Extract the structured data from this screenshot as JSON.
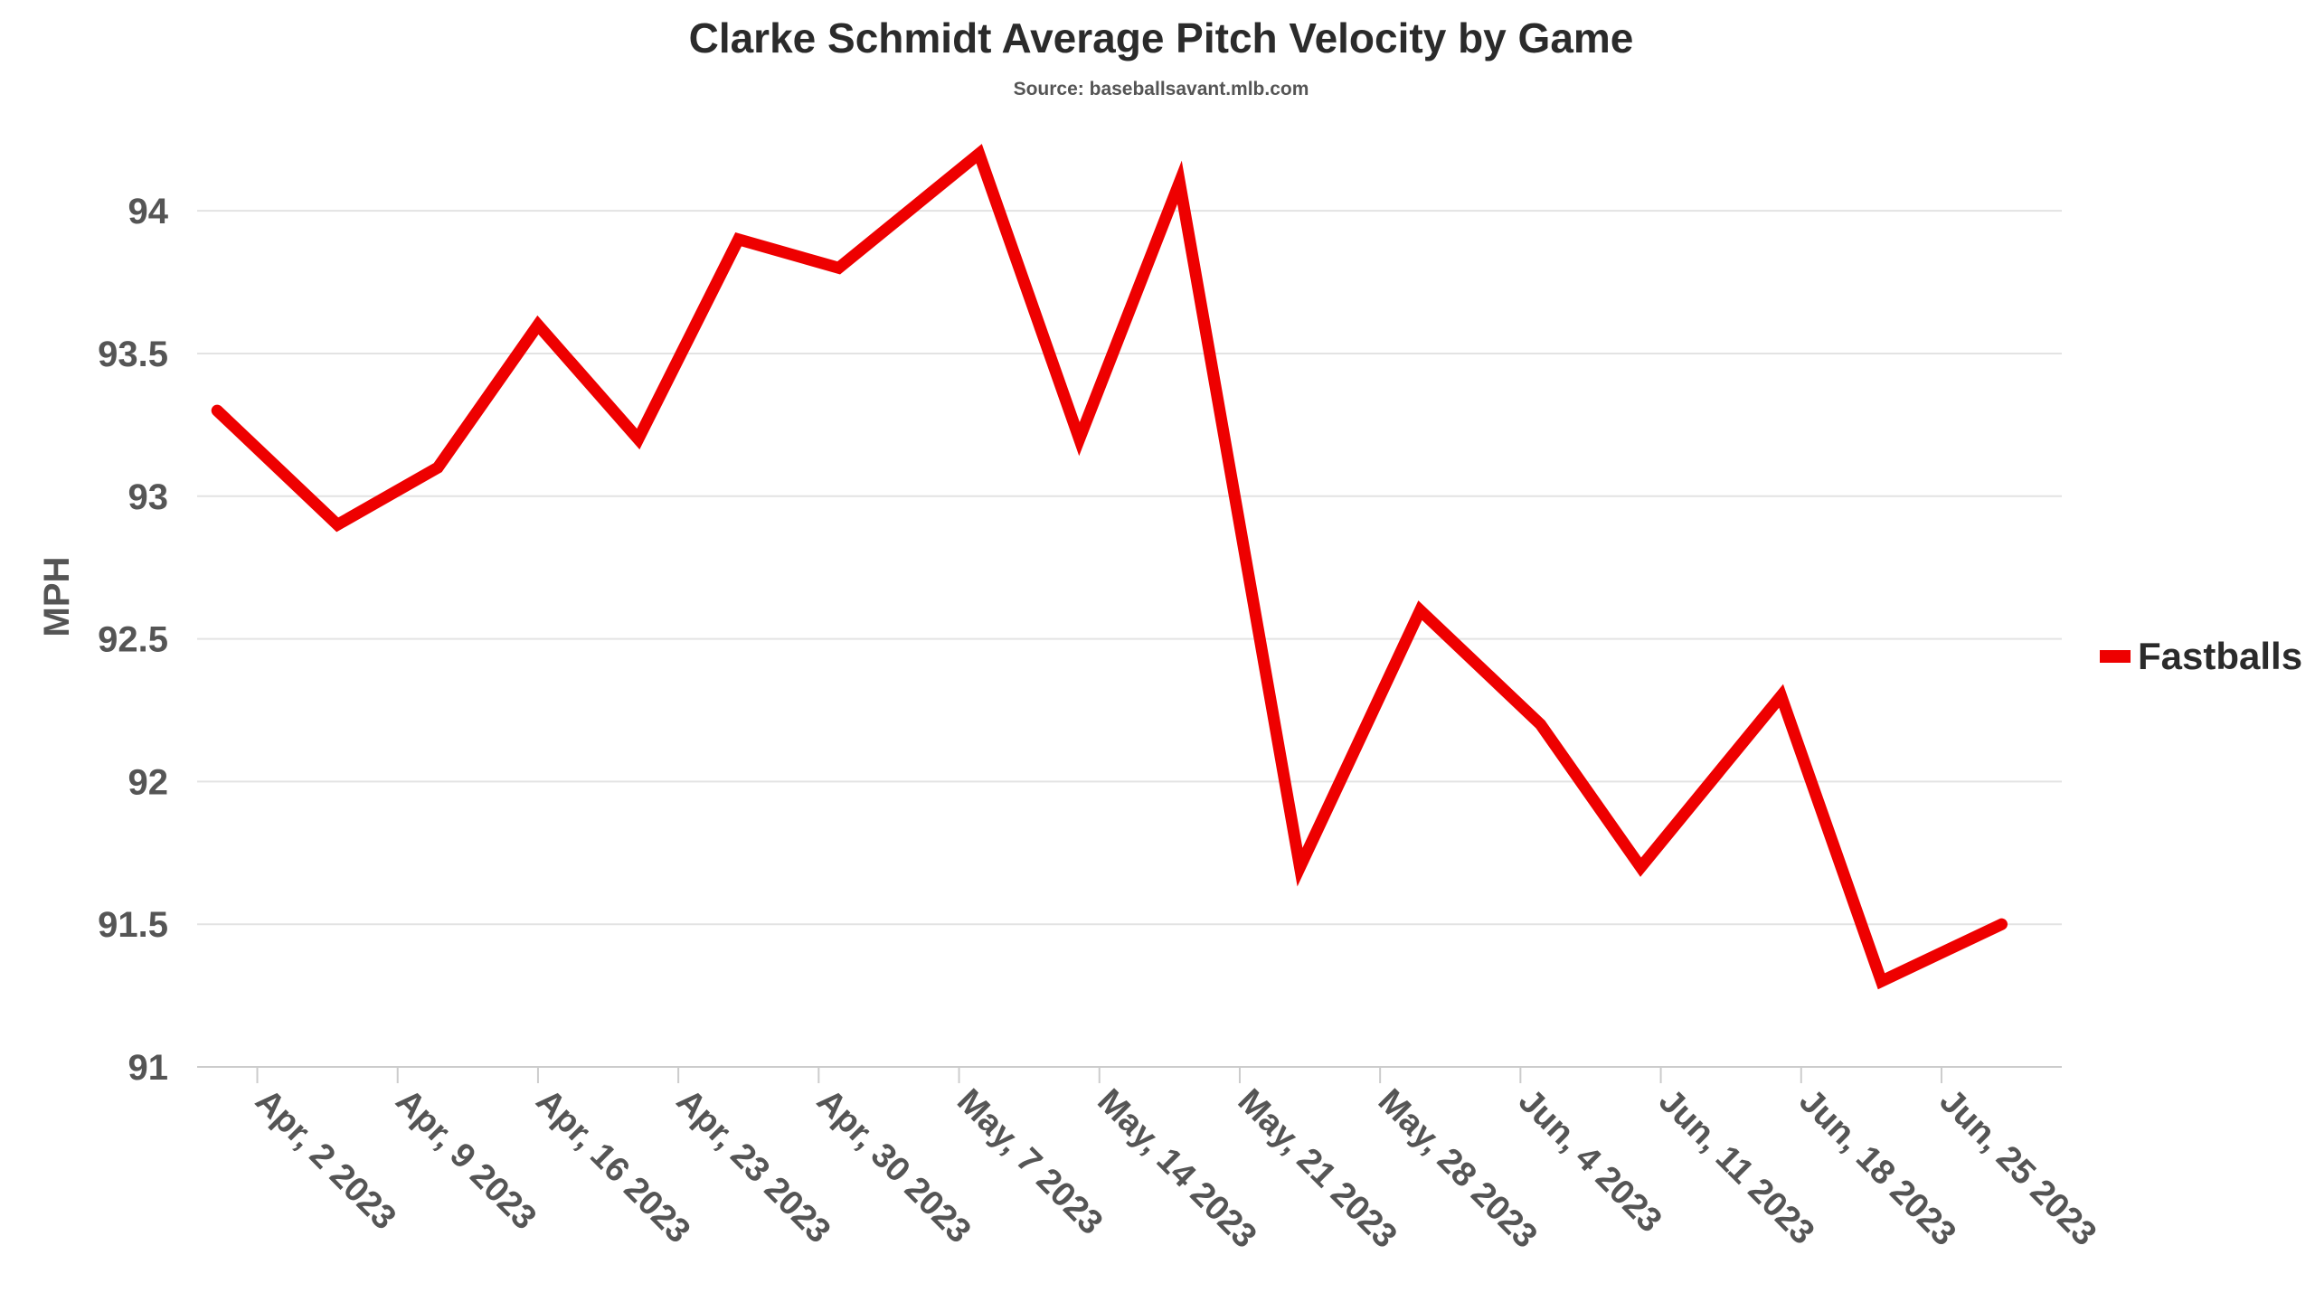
{
  "chart_data": {
    "type": "line",
    "title": "Clarke Schmidt Average Pitch Velocity by Game",
    "subtitle": "Source: baseballsavant.mlb.com",
    "ylabel": "MPH",
    "xlabel": "",
    "ylim": [
      91,
      94.2
    ],
    "yticks": [
      91,
      91.5,
      92,
      92.5,
      93,
      93.5,
      94
    ],
    "xlim": [
      "2023-03-30",
      "2023-07-01"
    ],
    "xticks": [
      {
        "date": "2023-04-02",
        "label": "Apr, 2 2023"
      },
      {
        "date": "2023-04-09",
        "label": "Apr, 9 2023"
      },
      {
        "date": "2023-04-16",
        "label": "Apr, 16 2023"
      },
      {
        "date": "2023-04-23",
        "label": "Apr, 23 2023"
      },
      {
        "date": "2023-04-30",
        "label": "Apr, 30 2023"
      },
      {
        "date": "2023-05-07",
        "label": "May, 7 2023"
      },
      {
        "date": "2023-05-14",
        "label": "May, 14 2023"
      },
      {
        "date": "2023-05-21",
        "label": "May, 21 2023"
      },
      {
        "date": "2023-05-28",
        "label": "May, 28 2023"
      },
      {
        "date": "2023-06-04",
        "label": "Jun, 4 2023"
      },
      {
        "date": "2023-06-11",
        "label": "Jun, 11 2023"
      },
      {
        "date": "2023-06-18",
        "label": "Jun, 18 2023"
      },
      {
        "date": "2023-06-25",
        "label": "Jun, 25 2023"
      }
    ],
    "grid": true,
    "legend_position": "right",
    "series": [
      {
        "name": "Fastballs",
        "color": "#ee0000",
        "points": [
          {
            "x": "2023-03-31",
            "y": 93.3
          },
          {
            "x": "2023-04-06",
            "y": 92.9
          },
          {
            "x": "2023-04-11",
            "y": 93.1
          },
          {
            "x": "2023-04-16",
            "y": 93.6
          },
          {
            "x": "2023-04-21",
            "y": 93.2
          },
          {
            "x": "2023-04-26",
            "y": 93.9
          },
          {
            "x": "2023-05-01",
            "y": 93.8
          },
          {
            "x": "2023-05-08",
            "y": 94.2
          },
          {
            "x": "2023-05-13",
            "y": 93.2
          },
          {
            "x": "2023-05-18",
            "y": 94.1
          },
          {
            "x": "2023-05-24",
            "y": 91.7
          },
          {
            "x": "2023-05-30",
            "y": 92.6
          },
          {
            "x": "2023-06-05",
            "y": 92.2
          },
          {
            "x": "2023-06-10",
            "y": 91.7
          },
          {
            "x": "2023-06-17",
            "y": 92.3
          },
          {
            "x": "2023-06-22",
            "y": 91.3
          },
          {
            "x": "2023-06-28",
            "y": 91.5
          }
        ]
      }
    ]
  }
}
